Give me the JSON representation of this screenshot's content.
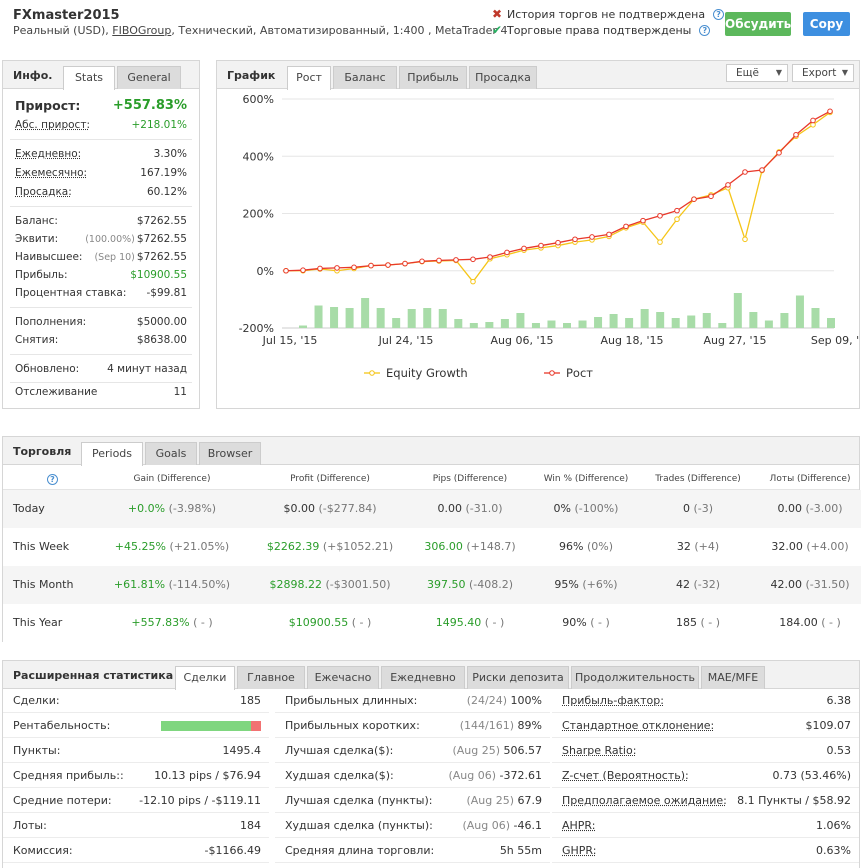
{
  "header": {
    "title": "FXmaster2015",
    "subtitle_pre": "Реальный (USD), ",
    "subtitle_link": "FIBOGroup",
    "subtitle_post": ", Технический, Автоматизированный, 1:400 , MetaTrader 4",
    "status_unverified": "История торгов не подтверждена",
    "status_verified": "Торговые права подтверждены",
    "btn_discuss": "Обсудить",
    "btn_copy": "Copy"
  },
  "info": {
    "title": "Инфо.",
    "tabs": [
      "Stats",
      "General"
    ],
    "growth_label": "Прирост:",
    "growth_value": "+557.83%",
    "abs_label": "Абс. прирост:",
    "abs_value": "+218.01%",
    "daily_label": "Ежедневно:",
    "daily_value": "3.30%",
    "monthly_label": "Ежемесячно:",
    "monthly_value": "167.19%",
    "drawdown_label": "Просадка:",
    "drawdown_value": "60.12%",
    "balance_label": "Баланс:",
    "balance_value": "$7262.55",
    "equity_label": "Эквити:",
    "equity_pct": "(100.00%)",
    "equity_value": "$7262.55",
    "highest_label": "Наивысшее:",
    "highest_date": "(Sep 10)",
    "highest_value": "$7262.55",
    "profit_label": "Прибыль:",
    "profit_value": "$10900.55",
    "interest_label": "Процентная ставка:",
    "interest_value": "-$99.81",
    "deposits_label": "Пополнения:",
    "deposits_value": "$5000.00",
    "withdrawals_label": "Снятия:",
    "withdrawals_value": "$8638.00",
    "updated_label": "Обновлено:",
    "updated_value": "4 минут назад",
    "tracking_label": "Отслеживание",
    "tracking_value": "11"
  },
  "chart_panel": {
    "title": "График",
    "tabs": [
      "Рост",
      "Баланс",
      "Прибыль",
      "Просадка"
    ],
    "more_label": "Ещё",
    "export_label": "Export"
  },
  "chart_data": {
    "type": "line",
    "y_ticks": [
      "600%",
      "400%",
      "200%",
      "0%",
      "-200%"
    ],
    "ylim": [
      -200,
      600
    ],
    "x_ticks": [
      "Jul 15, '15",
      "Jul 24, '15",
      "Aug 06, '15",
      "Aug 18, '15",
      "Aug 27, '15",
      "Sep 09, '15"
    ],
    "series": [
      {
        "name": "Equity Growth",
        "color": "#f5c518",
        "values": [
          0,
          0,
          6,
          0,
          8,
          18,
          20,
          25,
          32,
          34,
          36,
          -38,
          42,
          56,
          72,
          80,
          88,
          100,
          108,
          120,
          150,
          170,
          100,
          180,
          250,
          265,
          290,
          110,
          350,
          415,
          470,
          510,
          553
        ]
      },
      {
        "name": "Рост",
        "color": "#e8382a",
        "values": [
          0,
          2,
          8,
          10,
          12,
          18,
          20,
          25,
          33,
          36,
          38,
          40,
          48,
          64,
          78,
          88,
          98,
          110,
          118,
          127,
          155,
          175,
          192,
          210,
          250,
          260,
          300,
          345,
          352,
          412,
          475,
          525,
          557
        ]
      }
    ],
    "bars": {
      "color": "#a8dca8",
      "values": [
        5,
        45,
        42,
        40,
        60,
        40,
        20,
        38,
        40,
        38,
        18,
        10,
        12,
        18,
        30,
        10,
        15,
        10,
        15,
        22,
        28,
        20,
        38,
        32,
        20,
        25,
        30,
        10,
        70,
        32,
        15,
        30,
        65,
        40,
        20
      ]
    }
  },
  "trading": {
    "title": "Торговля",
    "tabs": [
      "Periods",
      "Goals",
      "Browser"
    ],
    "columns": [
      "Gain (Difference)",
      "Profit (Difference)",
      "Pips (Difference)",
      "Win % (Difference)",
      "Trades (Difference)",
      "Лоты (Difference)"
    ],
    "rows": [
      {
        "period": "Today",
        "gain": "+0.0%",
        "gain_d": "(-3.98%)",
        "profit": "$0.00",
        "profit_d": "(-$277.84)",
        "pips": "0.00",
        "pips_d": "(-31.0)",
        "win": "0%",
        "win_d": "(-100%)",
        "trades": "0",
        "trades_d": "(-3)",
        "lots": "0.00",
        "lots_d": "(-3.00)"
      },
      {
        "period": "This Week",
        "gain": "+45.25%",
        "gain_d": "(+21.05%)",
        "profit": "$2262.39",
        "profit_d": "(+$1052.21)",
        "pips": "306.00",
        "pips_d": "(+148.7)",
        "win": "96%",
        "win_d": "(0%)",
        "trades": "32",
        "trades_d": "(+4)",
        "lots": "32.00",
        "lots_d": "(+4.00)"
      },
      {
        "period": "This Month",
        "gain": "+61.81%",
        "gain_d": "(-114.50%)",
        "profit": "$2898.22",
        "profit_d": "(-$3001.50)",
        "pips": "397.50",
        "pips_d": "(-408.2)",
        "win": "95%",
        "win_d": "(+6%)",
        "trades": "42",
        "trades_d": "(-32)",
        "lots": "42.00",
        "lots_d": "(-31.50)"
      },
      {
        "period": "This Year",
        "gain": "+557.83%",
        "gain_d": "( - )",
        "profit": "$10900.55",
        "profit_d": "( - )",
        "pips": "1495.40",
        "pips_d": "( - )",
        "win": "90%",
        "win_d": "( - )",
        "trades": "185",
        "trades_d": "( - )",
        "lots": "184.00",
        "lots_d": "( - )"
      }
    ]
  },
  "ext": {
    "title": "Расширенная статистика",
    "tabs": [
      "Сделки",
      "Главное",
      "Ежечасно",
      "Ежедневно",
      "Риски депозита",
      "Продолжительность",
      "MAE/MFE"
    ],
    "col1": [
      {
        "label": "Сделки:",
        "value": "185"
      },
      {
        "label": "Рентабельность:",
        "value": ""
      },
      {
        "label": "Пункты:",
        "value": "1495.4"
      },
      {
        "label": "Средняя прибыль::",
        "value": "10.13 pips / $76.94"
      },
      {
        "label": "Средние потери:",
        "value": "-12.10 pips / -$119.11"
      },
      {
        "label": "Лоты:",
        "value": "184"
      },
      {
        "label": "Комиссия:",
        "value": "-$1166.49"
      }
    ],
    "profitability_pct": 90,
    "col2": [
      {
        "label": "Прибыльных длинных:",
        "muted": "(24/24)",
        "value": "100%"
      },
      {
        "label": "Прибыльных коротких:",
        "muted": "(144/161)",
        "value": "89%"
      },
      {
        "label": "Лучшая сделка($):",
        "muted": "(Aug 25)",
        "value": "506.57"
      },
      {
        "label": "Худшая сделка($):",
        "muted": "(Aug 06)",
        "value": "-372.61"
      },
      {
        "label": "Лучшая сделка (пункты):",
        "muted": "(Aug 25)",
        "value": "67.9"
      },
      {
        "label": "Худшая сделка (пункты):",
        "muted": "(Aug 06)",
        "value": "-46.1"
      },
      {
        "label": "Средняя длина торговли:",
        "muted": "",
        "value": "5h 55m"
      }
    ],
    "col3": [
      {
        "label": "Прибыль-фактор:",
        "value": "6.38"
      },
      {
        "label": "Стандартное отклонение:",
        "value": "$109.07"
      },
      {
        "label": "Sharpe Ratio:",
        "value": "0.53"
      },
      {
        "label": "Z-счет (Вероятность):",
        "value": "0.73 (53.46%)"
      },
      {
        "label": "Предполагаемое ожидание:",
        "value": "8.1 Пункты / $58.92"
      },
      {
        "label": "AHPR:",
        "value": "1.06%"
      },
      {
        "label": "GHPR:",
        "value": "0.63%"
      }
    ]
  }
}
